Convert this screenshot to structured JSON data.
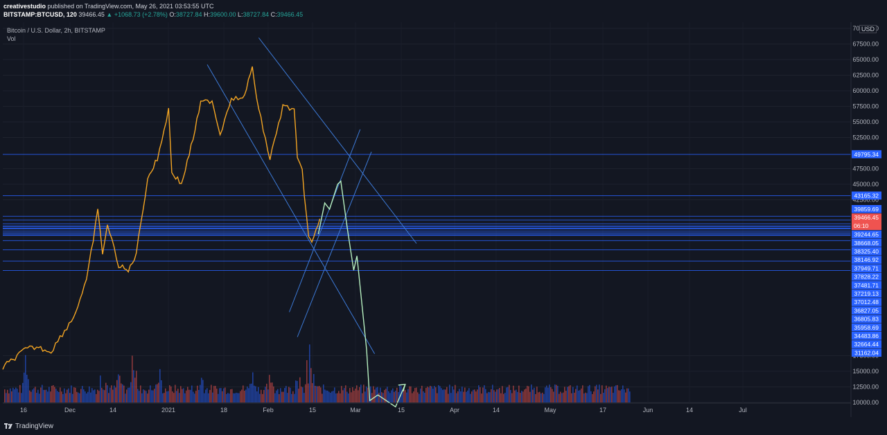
{
  "header": {
    "publisher": "creativestudio",
    "published_text": "published on TradingView.com, May 26, 2021 03:53:55 UTC",
    "symbol": "BITSTAMP:BTCUSD, 120",
    "price": "39466.45",
    "change": "▲ +1068.73 (+2.78%)",
    "open_label": "O:",
    "open": "38727.84",
    "high_label": "H:",
    "high": "39600.00",
    "low_label": "L:",
    "low": "38727.84",
    "close_label": "C:",
    "close": "39466.45"
  },
  "legend": {
    "title": "Bitcoin / U.S. Dollar, 2h, BITSTAMP",
    "vol": "Vol"
  },
  "axis_currency": "USD",
  "footer": {
    "brand": "TradingView"
  },
  "colors": {
    "bg": "#131722",
    "price_line": "#f5a623",
    "level_lines": "#2962ff",
    "projection": "#b7f0c0",
    "current_price": "#ef5350",
    "up": "#26a69a",
    "down": "#ef5350"
  },
  "chart_data": {
    "type": "line",
    "title": "Bitcoin / U.S. Dollar, 2h, BITSTAMP",
    "x_tick_labels": [
      "16",
      "Dec",
      "14",
      "2021",
      "18",
      "Feb",
      "15",
      "Mar",
      "15",
      "Apr",
      "14",
      "May",
      "17",
      "Jun",
      "14",
      "Jul"
    ],
    "y_tick_labels": [
      10000,
      12500,
      15000,
      17500,
      42500,
      45000,
      47500,
      52500,
      55000,
      57500,
      60000,
      62500,
      65000,
      67500,
      70000
    ],
    "y_top_label": "70000.00",
    "ylim": [
      10000,
      70000
    ],
    "price_series": {
      "x": [
        "2020-11-10",
        "2020-11-24",
        "2020-12-01",
        "2020-12-10",
        "2020-12-17",
        "2020-12-24",
        "2021-01-01",
        "2021-01-08",
        "2021-01-11",
        "2021-01-14",
        "2021-01-21",
        "2021-01-27",
        "2021-02-01",
        "2021-02-08",
        "2021-02-14",
        "2021-02-21",
        "2021-02-23",
        "2021-03-01",
        "2021-03-07",
        "2021-03-13",
        "2021-03-20",
        "2021-03-25",
        "2021-04-01",
        "2021-04-08",
        "2021-04-14",
        "2021-04-18",
        "2021-04-25",
        "2021-05-03",
        "2021-05-10",
        "2021-05-12",
        "2021-05-15",
        "2021-05-19",
        "2021-05-21",
        "2021-05-26"
      ],
      "y": [
        15600,
        18500,
        18900,
        18200,
        21000,
        23700,
        29400,
        40700,
        34000,
        38500,
        32000,
        31000,
        34000,
        46000,
        49000,
        57000,
        47000,
        45000,
        51000,
        58000,
        58500,
        53000,
        59000,
        58500,
        63500,
        57000,
        49000,
        57500,
        57000,
        49000,
        47000,
        36500,
        35500,
        39466
      ]
    },
    "projection_series": {
      "x": [
        "2021-05-25",
        "2021-05-29",
        "2021-06-01",
        "2021-06-06",
        "2021-06-08",
        "2021-06-12",
        "2021-06-16",
        "2021-06-18",
        "2021-06-24",
        "2021-06-26",
        "2021-07-01",
        "2021-07-12",
        "2021-07-18"
      ],
      "y": [
        37000,
        42000,
        41000,
        45000,
        45500,
        38000,
        31200,
        33500,
        18500,
        10300,
        11200,
        9300,
        12900
      ]
    },
    "horizontal_levels": [
      {
        "value": 49795.34,
        "label": "49795.34"
      },
      {
        "value": 43165.32,
        "label": "43165.32"
      },
      {
        "value": 39859.69,
        "label": "39859.69"
      },
      {
        "value": 39244.65,
        "label": "39244.65"
      },
      {
        "value": 38668.05,
        "label": "38668.05"
      },
      {
        "value": 38325.4,
        "label": "38325.40"
      },
      {
        "value": 38146.92,
        "label": "38146.92"
      },
      {
        "value": 37949.71,
        "label": "37949.71"
      },
      {
        "value": 37828.22,
        "label": "37828.22"
      },
      {
        "value": 37481.71,
        "label": "37481.71"
      },
      {
        "value": 37219.13,
        "label": "37219.13"
      },
      {
        "value": 37012.48,
        "label": "37012.48"
      },
      {
        "value": 36827.05,
        "label": "36827.05"
      },
      {
        "value": 36805.83,
        "label": "36805.83"
      },
      {
        "value": 35958.69,
        "label": "35958.69"
      },
      {
        "value": 34483.86,
        "label": "34483.86"
      },
      {
        "value": 32664.44,
        "label": "32664.44"
      },
      {
        "value": 31162.04,
        "label": "31162.04"
      }
    ],
    "current_price": {
      "value": 39466.45,
      "label": "39466.45",
      "countdown": "06:10"
    },
    "trendlines": [
      {
        "x": [
          "2021-03-17",
          "2021-06-29"
        ],
        "y": [
          64200,
          17800
        ]
      },
      {
        "x": [
          "2021-04-18",
          "2021-07-25"
        ],
        "y": [
          68500,
          35500
        ]
      },
      {
        "x": [
          "2021-05-07",
          "2021-06-20"
        ],
        "y": [
          24500,
          53800
        ]
      },
      {
        "x": [
          "2021-05-12",
          "2021-06-27"
        ],
        "y": [
          20500,
          50200
        ]
      }
    ],
    "volume": {
      "x": [
        "2020-11-24",
        "2021-01-11",
        "2021-01-21",
        "2021-01-30",
        "2021-02-14",
        "2021-03-13",
        "2021-04-14",
        "2021-04-25",
        "2021-05-12",
        "2021-05-19",
        "2021-05-21"
      ],
      "y": [
        6,
        8,
        3,
        9,
        5,
        3,
        3,
        3,
        4,
        9,
        3
      ]
    },
    "xlabel": "",
    "ylabel": "",
    "grid": true,
    "legend_position": "top-left"
  }
}
